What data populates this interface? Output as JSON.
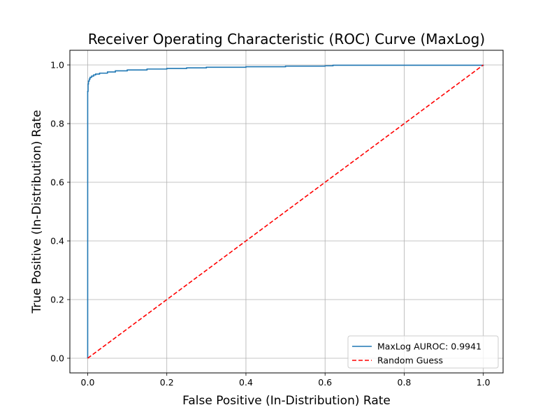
{
  "chart_data": {
    "type": "line",
    "title": "Receiver Operating Characteristic (ROC) Curve (MaxLog)",
    "xlabel": "False Positive (In-Distribution) Rate",
    "ylabel": "True Positive (In-Distribution) Rate",
    "xlim": [
      -0.045,
      1.05
    ],
    "ylim": [
      -0.05,
      1.05
    ],
    "xticks": [
      "0.0",
      "0.2",
      "0.4",
      "0.6",
      "0.8",
      "1.0"
    ],
    "yticks": [
      "0.0",
      "0.2",
      "0.4",
      "0.6",
      "0.8",
      "1.0"
    ],
    "grid": true,
    "legend_position": "lower-right",
    "series": [
      {
        "name": "MaxLog AUROC: 0.9941",
        "color": "#1f77b4",
        "style": "solid",
        "x": [
          0.0,
          0.0,
          0.001,
          0.002,
          0.004,
          0.006,
          0.01,
          0.015,
          0.02,
          0.03,
          0.05,
          0.07,
          0.1,
          0.15,
          0.2,
          0.25,
          0.3,
          0.4,
          0.5,
          0.6,
          0.62,
          0.8,
          1.0
        ],
        "y": [
          0.0,
          0.91,
          0.935,
          0.945,
          0.952,
          0.958,
          0.962,
          0.966,
          0.969,
          0.972,
          0.976,
          0.98,
          0.983,
          0.986,
          0.988,
          0.99,
          0.992,
          0.994,
          0.996,
          0.997,
          0.999,
          0.999,
          1.0
        ]
      },
      {
        "name": "Random Guess",
        "color": "#ff0000",
        "style": "dashed",
        "x": [
          0.0,
          1.0
        ],
        "y": [
          0.0,
          1.0
        ]
      }
    ]
  }
}
